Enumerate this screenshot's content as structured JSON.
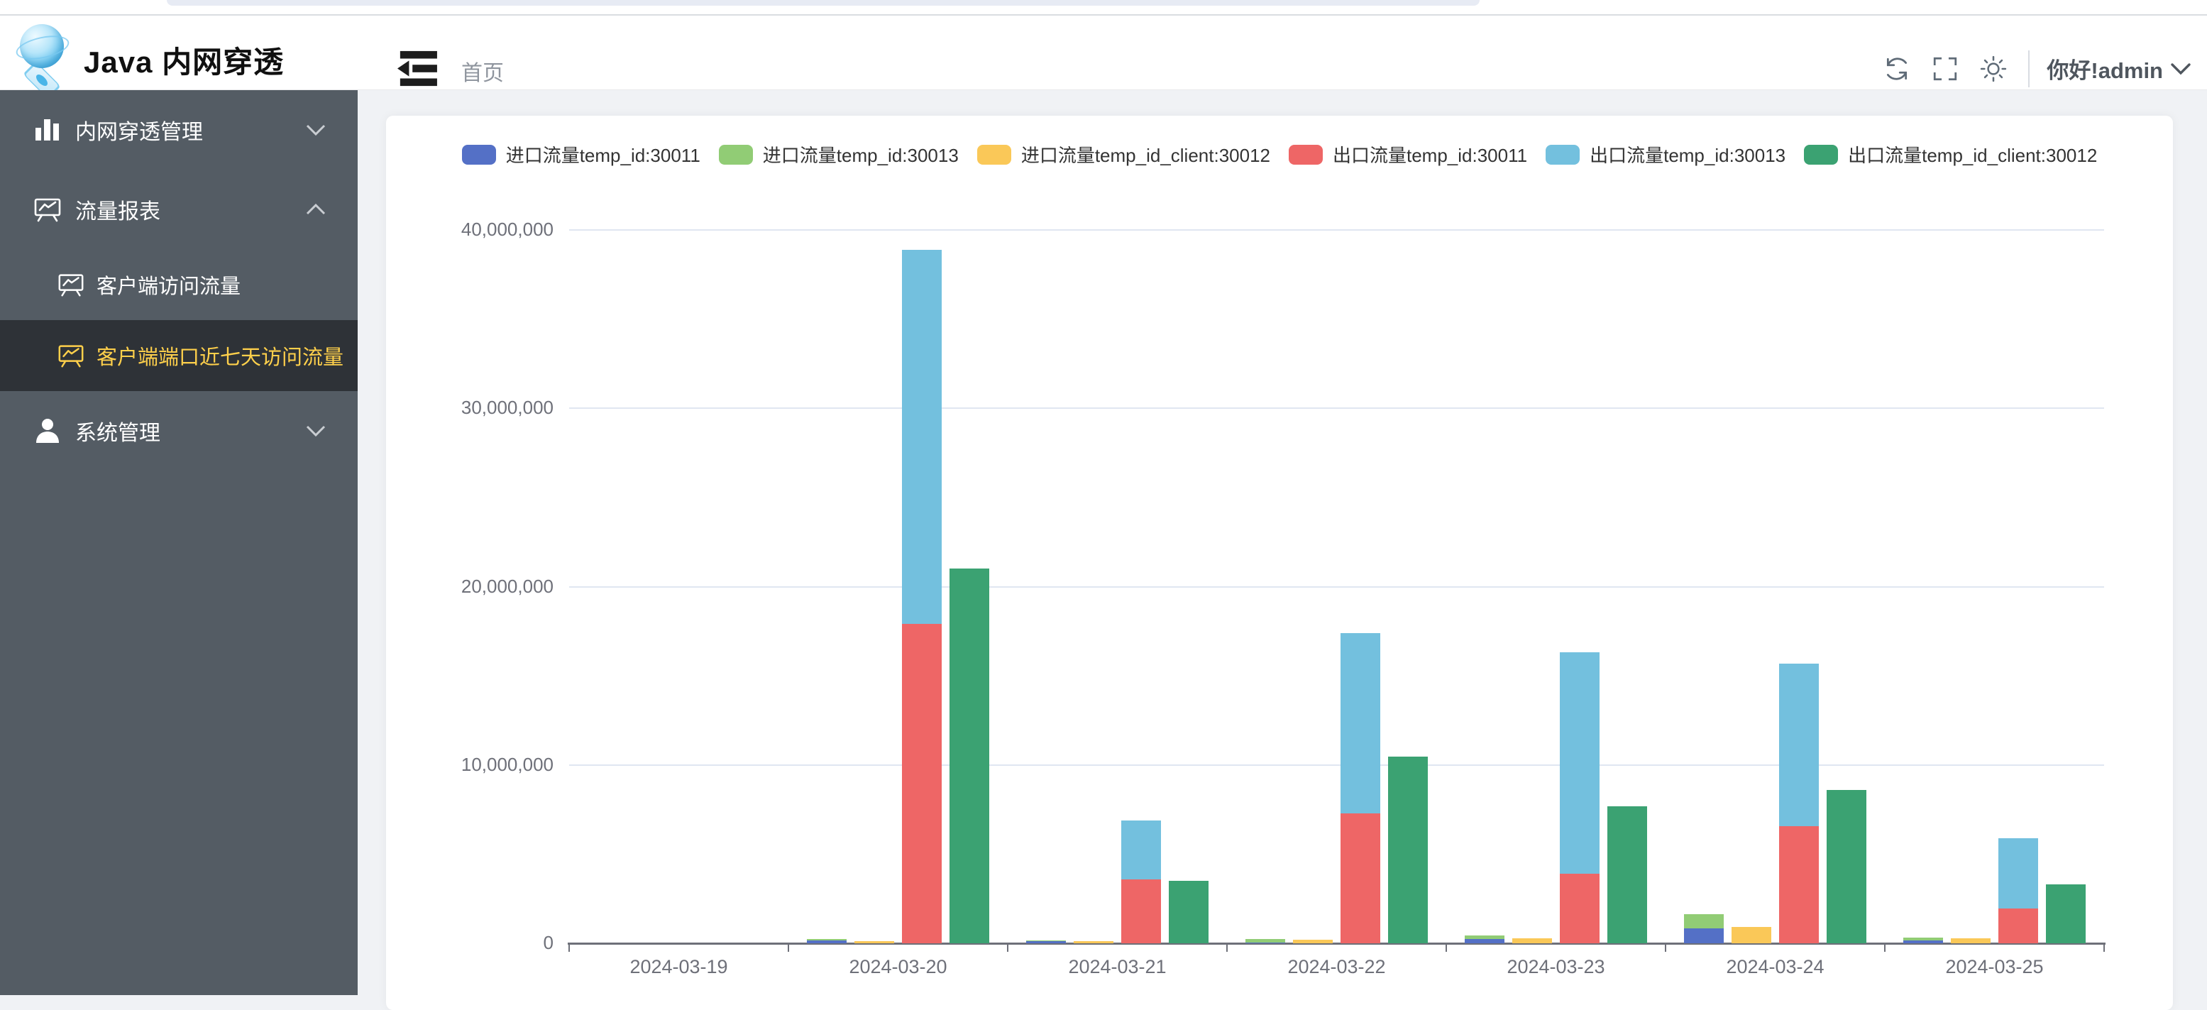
{
  "header": {
    "app_title": "Java 内网穿透",
    "breadcrumb": "首页",
    "greeting": "你好!admin",
    "icons": [
      "refresh-icon",
      "fullscreen-icon",
      "theme-sun-icon"
    ]
  },
  "sidebar": {
    "items": [
      {
        "label": "内网穿透管理",
        "icon": "bar-chart-icon",
        "state": "collapsed"
      },
      {
        "label": "流量报表",
        "icon": "chart-board-icon",
        "state": "expanded"
      },
      {
        "label": "系统管理",
        "icon": "user-icon",
        "state": "collapsed"
      }
    ],
    "sub_items": [
      {
        "label": "客户端访问流量",
        "icon": "chart-board-icon",
        "active": false
      },
      {
        "label": "客户端端口近七天访问流量",
        "icon": "chart-board-icon",
        "active": true
      }
    ],
    "colors": {
      "bg": "#545c64",
      "active_bg": "#2e3237",
      "active_text": "#ffd04b"
    }
  },
  "chart_data": {
    "type": "bar",
    "categories": [
      "2024-03-19",
      "2024-03-20",
      "2024-03-21",
      "2024-03-22",
      "2024-03-23",
      "2024-03-24",
      "2024-03-25"
    ],
    "series": [
      {
        "name": "进口流量temp_id:30011",
        "color": "#5470c6",
        "stack": "in",
        "values": [
          0,
          160000,
          120000,
          50000,
          220000,
          850000,
          150000
        ]
      },
      {
        "name": "进口流量temp_id:30013",
        "color": "#91cc75",
        "stack": "in",
        "values": [
          0,
          60000,
          60000,
          170000,
          200000,
          800000,
          180000
        ]
      },
      {
        "name": "进口流量temp_id_client:30012",
        "color": "#fac858",
        "stack": "in_client",
        "values": [
          0,
          120000,
          110000,
          190000,
          270000,
          900000,
          260000
        ]
      },
      {
        "name": "出口流量temp_id:30011",
        "color": "#ee6666",
        "stack": "out",
        "values": [
          0,
          17900000,
          3600000,
          7300000,
          3900000,
          6550000,
          1950000
        ]
      },
      {
        "name": "出口流量temp_id:30013",
        "color": "#73c0de",
        "stack": "out",
        "values": [
          0,
          21000000,
          3300000,
          10100000,
          12400000,
          9150000,
          3950000
        ]
      },
      {
        "name": "出口流量temp_id_client:30012",
        "color": "#3ba272",
        "stack": "out_client",
        "values": [
          0,
          21000000,
          3500000,
          10450000,
          7700000,
          8600000,
          3300000
        ]
      }
    ],
    "ylim": [
      0,
      40000000
    ],
    "y_tick_values": [
      0,
      10000000,
      20000000,
      30000000,
      40000000
    ],
    "grid": true,
    "legend_position": "top",
    "title": "",
    "xlabel": "",
    "ylabel": ""
  }
}
